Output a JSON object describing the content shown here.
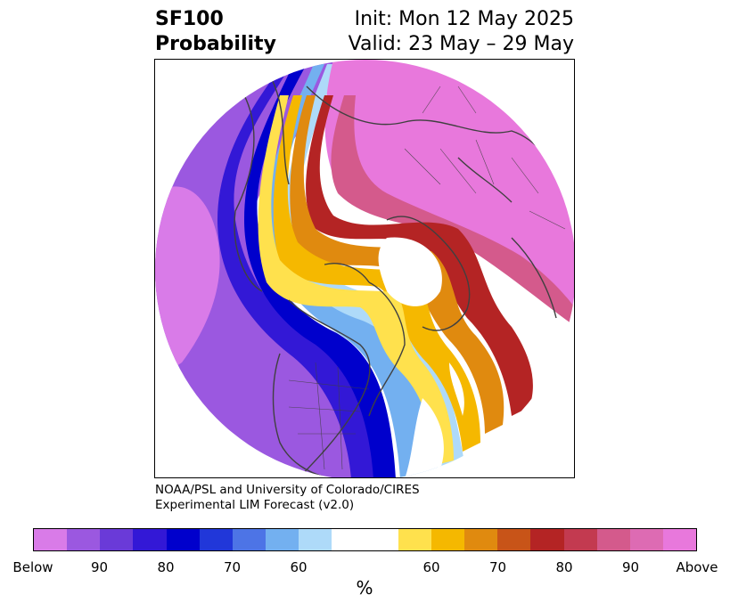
{
  "header": {
    "title_line1": "SF100",
    "title_line2": "Probability",
    "init": "Init: Mon 12 May 2025",
    "valid": "Valid: 23 May – 29 May"
  },
  "credit": {
    "line1": "NOAA/PSL and University of Colorado/CIRES",
    "line2": "Experimental LIM Forecast (v2.0)"
  },
  "colorbar": {
    "colors": [
      "#d97be8",
      "#9b58e0",
      "#6a3ad8",
      "#3318d6",
      "#0000cc",
      "#2137d9",
      "#4d74e6",
      "#73b0f0",
      "#aedaf9",
      "#ffffff",
      "#ffffff",
      "#ffe14d",
      "#f5b800",
      "#e08a0f",
      "#c85418",
      "#b42424",
      "#c33a50",
      "#d45a8c",
      "#dd6bb3",
      "#e878dc"
    ],
    "labels": [
      "Below",
      "90",
      "80",
      "70",
      "60",
      "60",
      "70",
      "80",
      "90",
      "Above"
    ],
    "unit": "%"
  },
  "map": {
    "colors": {
      "land_border": "#404040",
      "pink": "#e878dc",
      "rose": "#d45a8c",
      "dark_red": "#b42424",
      "orange": "#e08a0f",
      "yellow": "#ffe14d",
      "gold": "#f5b800",
      "light_blue": "#aedaf9",
      "sky": "#73b0f0",
      "blue": "#0000cc",
      "indigo": "#3318d6",
      "purple": "#9b58e0",
      "violet": "#d97be8"
    }
  }
}
